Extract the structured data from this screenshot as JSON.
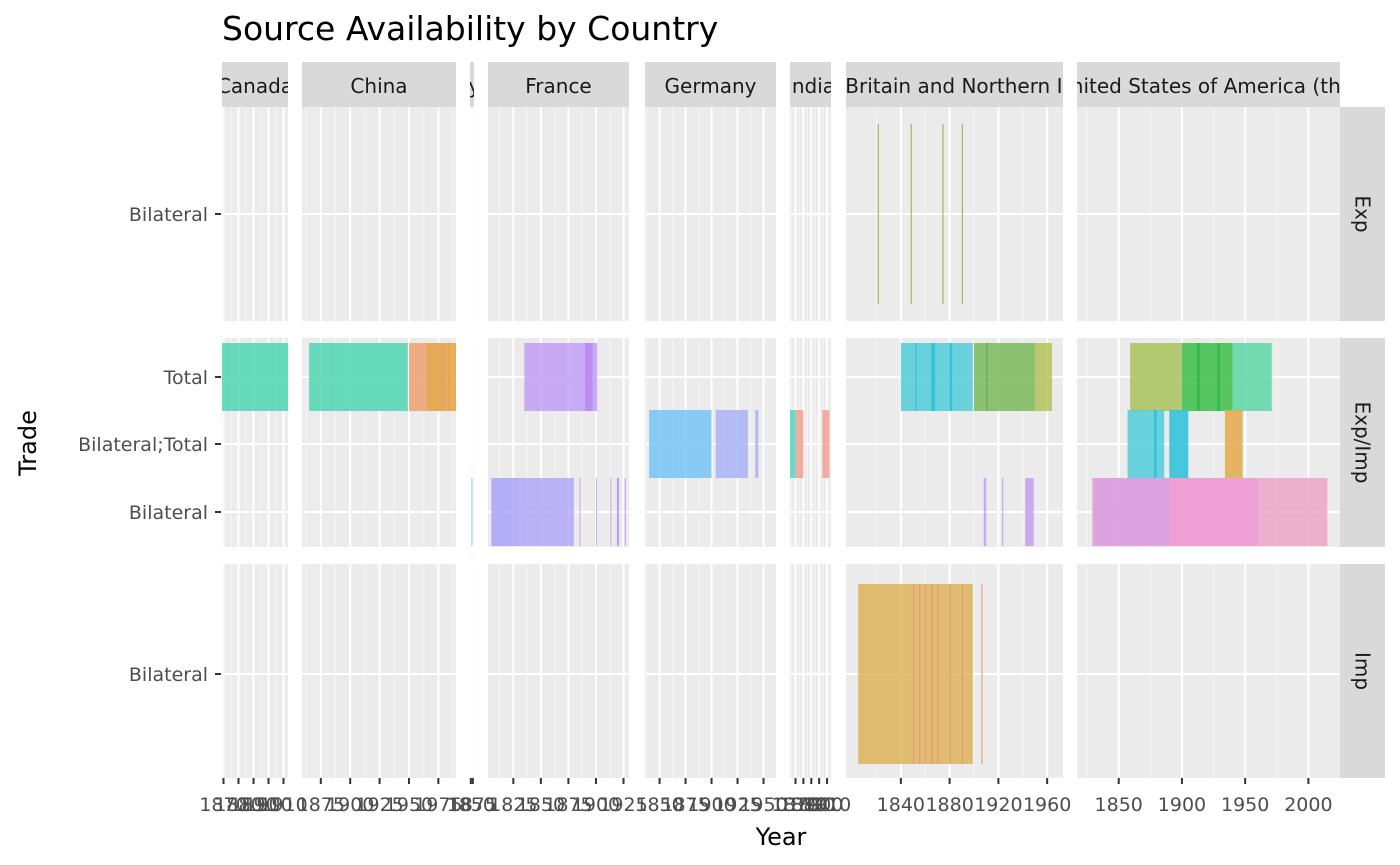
{
  "chart_data": {
    "type": "bar",
    "title": "Source Availability by Country",
    "xlabel": "Year",
    "ylabel": "Trade",
    "facet_columns": [
      {
        "label": "Canada",
        "xlim": [
          1869,
          1913
        ],
        "ticks": [
          1870,
          1880,
          1890,
          1900,
          1910
        ],
        "tick_labels": [
          "1870",
          "1880",
          "1890",
          "1900",
          "1910"
        ]
      },
      {
        "label": "China",
        "xlim": [
          1859,
          1990
        ],
        "ticks": [
          1875,
          1900,
          1925,
          1950,
          1975
        ],
        "tick_labels": [
          "1875",
          "1900",
          "1925",
          "1950",
          "1975"
        ]
      },
      {
        "label": "Egypt",
        "xlim": [
          1840,
          1890
        ],
        "ticks": [
          1850,
          1875
        ],
        "tick_labels": [
          "1850",
          "1875"
        ]
      },
      {
        "label": "France",
        "xlim": [
          1802,
          1930
        ],
        "ticks": [
          1825,
          1850,
          1875,
          1900,
          1925
        ],
        "tick_labels": [
          "1825",
          "1850",
          "1875",
          "1900",
          "1925"
        ]
      },
      {
        "label": "Germany",
        "xlim": [
          1836,
          1962
        ],
        "ticks": [
          1850,
          1875,
          1900,
          1925,
          1950
        ],
        "tick_labels": [
          "1850",
          "1875",
          "1900",
          "1925",
          "1950"
        ]
      },
      {
        "label": "India",
        "xlim": [
          1863,
          1915
        ],
        "ticks": [
          1870,
          1880,
          1890,
          1900,
          1910
        ],
        "tick_labels": [
          "1870",
          "1880",
          "1890",
          "1900",
          "1910"
        ]
      },
      {
        "label": "Great Britain and Northern Ireland",
        "xlim": [
          1795,
          1973
        ],
        "ticks": [
          1840,
          1880,
          1920,
          1960
        ],
        "tick_labels": [
          "1840",
          "1880",
          "1920",
          "1960"
        ]
      },
      {
        "label": "United States of America (the)",
        "xlim": [
          1817,
          2025
        ],
        "ticks": [
          1850,
          1900,
          1950,
          2000
        ],
        "tick_labels": [
          "1850",
          "1900",
          "1950",
          "2000"
        ]
      }
    ],
    "facet_rows": [
      {
        "label": "Exp",
        "categories": [
          "Bilateral"
        ]
      },
      {
        "label": "Exp/Imp",
        "categories": [
          "Bilateral",
          "Bilateral;Total",
          "Total"
        ]
      },
      {
        "label": "Imp",
        "categories": [
          "Bilateral"
        ]
      }
    ],
    "segments": [
      {
        "col": 0,
        "row": 1,
        "y": "Total",
        "from": 1869,
        "to": 1913,
        "color": "#4fd6b2"
      },
      {
        "col": 1,
        "row": 1,
        "y": "Total",
        "from": 1865,
        "to": 1949,
        "color": "#4fd6b2"
      },
      {
        "col": 1,
        "row": 1,
        "y": "Total",
        "from": 1950,
        "to": 1985,
        "color": "#f0a070"
      },
      {
        "col": 1,
        "row": 1,
        "y": "Total",
        "from": 1965,
        "to": 1982,
        "color": "#e0aa50"
      },
      {
        "col": 1,
        "row": 1,
        "y": "Total",
        "from": 1983,
        "to": 1990,
        "color": "#e6a340"
      },
      {
        "col": 2,
        "row": 1,
        "y": "Bilateral",
        "from": 1858,
        "to": 1860,
        "color": "#4fd6b2"
      },
      {
        "col": 3,
        "row": 1,
        "y": "Total",
        "from": 1835,
        "to": 1875,
        "color": "#c19cf5"
      },
      {
        "col": 3,
        "row": 1,
        "y": "Total",
        "from": 1875,
        "to": 1890,
        "color": "#bfa0f7"
      },
      {
        "col": 3,
        "row": 1,
        "y": "Total",
        "from": 1890,
        "to": 1897,
        "color": "#b37df5"
      },
      {
        "col": 3,
        "row": 1,
        "y": "Total",
        "from": 1897,
        "to": 1901,
        "color": "#c19cf5"
      },
      {
        "col": 3,
        "row": 1,
        "y": "Bilateral",
        "from": 1805,
        "to": 1830,
        "color": "#a9a5f7"
      },
      {
        "col": 3,
        "row": 1,
        "y": "Bilateral",
        "from": 1830,
        "to": 1880,
        "color": "#b2a8f7"
      },
      {
        "col": 3,
        "row": 1,
        "y": "Bilateral",
        "from": 1885,
        "to": 1886,
        "color": "#c3a8f5"
      },
      {
        "col": 3,
        "row": 1,
        "y": "Bilateral",
        "from": 1900,
        "to": 1901,
        "color": "#c3a8f5"
      },
      {
        "col": 3,
        "row": 1,
        "y": "Bilateral",
        "from": 1913,
        "to": 1914,
        "color": "#c3a8f5"
      },
      {
        "col": 3,
        "row": 1,
        "y": "Bilateral",
        "from": 1919,
        "to": 1921,
        "color": "#c08df5"
      },
      {
        "col": 3,
        "row": 1,
        "y": "Bilateral",
        "from": 1926,
        "to": 1927,
        "color": "#c08df5"
      },
      {
        "col": 4,
        "row": 1,
        "y": "Bilateral;Total",
        "from": 1840,
        "to": 1900,
        "color": "#78c4f7"
      },
      {
        "col": 4,
        "row": 1,
        "y": "Bilateral;Total",
        "from": 1904,
        "to": 1935,
        "color": "#a9b3f7"
      },
      {
        "col": 4,
        "row": 1,
        "y": "Bilateral;Total",
        "from": 1942,
        "to": 1945,
        "color": "#a9b3f7"
      },
      {
        "col": 5,
        "row": 1,
        "y": "Bilateral;Total",
        "from": 1863,
        "to": 1870,
        "color": "#4fd6c4"
      },
      {
        "col": 5,
        "row": 1,
        "y": "Bilateral;Total",
        "from": 1870,
        "to": 1880,
        "color": "#f0a090"
      },
      {
        "col": 5,
        "row": 1,
        "y": "Bilateral;Total",
        "from": 1904,
        "to": 1913,
        "color": "#f0a090"
      },
      {
        "col": 6,
        "row": 0,
        "y": "Bilateral",
        "from": 1821,
        "to": 1822,
        "color": "#8ab840"
      },
      {
        "col": 6,
        "row": 0,
        "y": "Bilateral",
        "from": 1848,
        "to": 1849,
        "color": "#8ab840"
      },
      {
        "col": 6,
        "row": 0,
        "y": "Bilateral",
        "from": 1874,
        "to": 1875,
        "color": "#8ab840"
      },
      {
        "col": 6,
        "row": 0,
        "y": "Bilateral",
        "from": 1890,
        "to": 1891,
        "color": "#8ab840"
      },
      {
        "col": 6,
        "row": 1,
        "y": "Total",
        "from": 1840,
        "to": 1899,
        "color": "#52ccd9"
      },
      {
        "col": 6,
        "row": 1,
        "y": "Total",
        "from": 1852,
        "to": 1853,
        "color": "#29bfd9"
      },
      {
        "col": 6,
        "row": 1,
        "y": "Total",
        "from": 1865,
        "to": 1868,
        "color": "#29bfd9"
      },
      {
        "col": 6,
        "row": 1,
        "y": "Total",
        "from": 1880,
        "to": 1882,
        "color": "#29bfd9"
      },
      {
        "col": 6,
        "row": 1,
        "y": "Total",
        "from": 1900,
        "to": 1950,
        "color": "#7aba5c"
      },
      {
        "col": 6,
        "row": 1,
        "y": "Total",
        "from": 1910,
        "to": 1911,
        "color": "#5cad4a"
      },
      {
        "col": 6,
        "row": 1,
        "y": "Total",
        "from": 1950,
        "to": 1964,
        "color": "#b4c35c"
      },
      {
        "col": 6,
        "row": 1,
        "y": "Bilateral",
        "from": 1908,
        "to": 1910,
        "color": "#c49df0"
      },
      {
        "col": 6,
        "row": 1,
        "y": "Bilateral",
        "from": 1923,
        "to": 1924,
        "color": "#c49df0"
      },
      {
        "col": 6,
        "row": 1,
        "y": "Bilateral",
        "from": 1942,
        "to": 1949,
        "color": "#c49df0"
      },
      {
        "col": 6,
        "row": 2,
        "y": "Bilateral",
        "from": 1805,
        "to": 1899,
        "color": "#deb45c"
      },
      {
        "col": 6,
        "row": 2,
        "y": "Bilateral",
        "from": 1850,
        "to": 1851,
        "color": "#e8947a"
      },
      {
        "col": 6,
        "row": 2,
        "y": "Bilateral",
        "from": 1855,
        "to": 1856,
        "color": "#e8947a"
      },
      {
        "col": 6,
        "row": 2,
        "y": "Bilateral",
        "from": 1860,
        "to": 1861,
        "color": "#e8947a"
      },
      {
        "col": 6,
        "row": 2,
        "y": "Bilateral",
        "from": 1865,
        "to": 1866,
        "color": "#e8947a"
      },
      {
        "col": 6,
        "row": 2,
        "y": "Bilateral",
        "from": 1870,
        "to": 1871,
        "color": "#e8947a"
      },
      {
        "col": 6,
        "row": 2,
        "y": "Bilateral",
        "from": 1880,
        "to": 1881,
        "color": "#e8947a"
      },
      {
        "col": 6,
        "row": 2,
        "y": "Bilateral",
        "from": 1890,
        "to": 1891,
        "color": "#e8947a"
      },
      {
        "col": 6,
        "row": 2,
        "y": "Bilateral",
        "from": 1906,
        "to": 1907,
        "color": "#e8947a"
      },
      {
        "col": 7,
        "row": 1,
        "y": "Total",
        "from": 1859,
        "to": 1900,
        "color": "#a9c35c"
      },
      {
        "col": 7,
        "row": 1,
        "y": "Total",
        "from": 1900,
        "to": 1940,
        "color": "#3cc04a"
      },
      {
        "col": 7,
        "row": 1,
        "y": "Total",
        "from": 1912,
        "to": 1914,
        "color": "#2fb540"
      },
      {
        "col": 7,
        "row": 1,
        "y": "Total",
        "from": 1928,
        "to": 1930,
        "color": "#2fb540"
      },
      {
        "col": 7,
        "row": 1,
        "y": "Total",
        "from": 1940,
        "to": 1971,
        "color": "#5ed6a6"
      },
      {
        "col": 7,
        "row": 1,
        "y": "Bilateral;Total",
        "from": 1857,
        "to": 1886,
        "color": "#52ccd9"
      },
      {
        "col": 7,
        "row": 1,
        "y": "Bilateral;Total",
        "from": 1878,
        "to": 1880,
        "color": "#29bfd9"
      },
      {
        "col": 7,
        "row": 1,
        "y": "Bilateral;Total",
        "from": 1890,
        "to": 1905,
        "color": "#29c0db"
      },
      {
        "col": 7,
        "row": 1,
        "y": "Bilateral;Total",
        "from": 1934,
        "to": 1948,
        "color": "#e3aa4c"
      },
      {
        "col": 7,
        "row": 1,
        "y": "Bilateral",
        "from": 1829,
        "to": 2015,
        "color": "#eca6c8"
      },
      {
        "col": 7,
        "row": 1,
        "y": "Bilateral",
        "from": 1830,
        "to": 1890,
        "color": "#dba0e3"
      },
      {
        "col": 7,
        "row": 1,
        "y": "Bilateral",
        "from": 1890,
        "to": 1960,
        "color": "#ee9ed6"
      }
    ]
  }
}
